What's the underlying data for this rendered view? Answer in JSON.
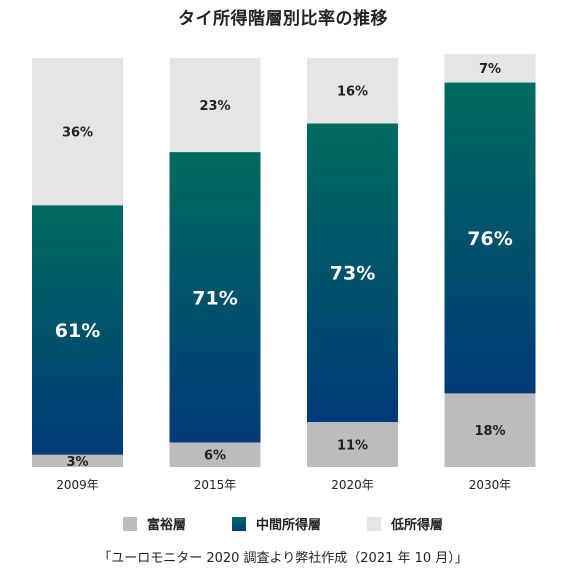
{
  "chart_data": {
    "type": "bar",
    "stacked": true,
    "title": "タイ所得階層別比率の推移",
    "categories": [
      "2009年",
      "2015年",
      "2020年",
      "2030年"
    ],
    "series": [
      {
        "name": "富裕層",
        "values": [
          3,
          6,
          11,
          18
        ],
        "labels": [
          "3%",
          "6%",
          "11%",
          "18%"
        ],
        "color": "#bcbcbc"
      },
      {
        "name": "中間所得層",
        "values": [
          61,
          71,
          73,
          76
        ],
        "labels": [
          "61%",
          "71%",
          "73%",
          "76%"
        ],
        "color": "#00605c"
      },
      {
        "name": "低所得層",
        "values": [
          36,
          23,
          16,
          7
        ],
        "labels": [
          "36%",
          "23%",
          "16%",
          "7%"
        ],
        "color": "#e6e5e6"
      }
    ],
    "ylim": [
      0,
      100
    ],
    "grid": false,
    "legend_position": "bottom",
    "middle_gradient": [
      "#006b5f",
      "#003a78"
    ]
  },
  "source": "「ユーロモニター 2020 調査より弊社作成（2021 年 10 月）」"
}
